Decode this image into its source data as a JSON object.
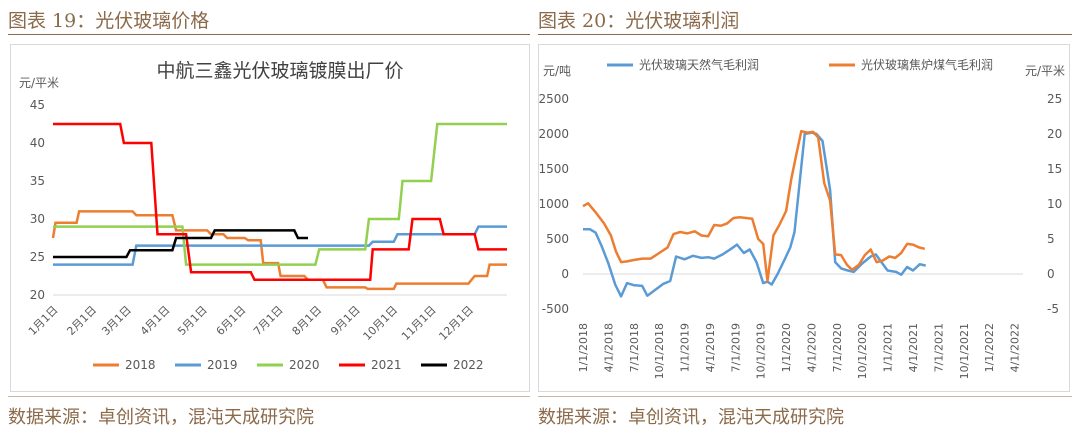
{
  "left_panel": {
    "figure_title": "图表 19：光伏玻璃价格",
    "source": "数据来源：卓创资讯，混沌天成研究院"
  },
  "right_panel": {
    "figure_title": "图表 20：光伏玻璃利润",
    "source": "数据来源：卓创资讯，混沌天成研究院"
  },
  "chart_data": [
    {
      "type": "line",
      "title": "中航三鑫光伏玻璃镀膜出厂价",
      "ylabel": "元/平米",
      "ylim": [
        20,
        45
      ],
      "yticks": [
        20,
        25,
        30,
        35,
        40,
        45
      ],
      "xlim": [
        1,
        366
      ],
      "xticks": [
        {
          "label": "1月1日",
          "day": 1
        },
        {
          "label": "2月1日",
          "day": 32
        },
        {
          "label": "3月1日",
          "day": 60
        },
        {
          "label": "4月1日",
          "day": 91
        },
        {
          "label": "5月1日",
          "day": 121
        },
        {
          "label": "6月1日",
          "day": 152
        },
        {
          "label": "7月1日",
          "day": 182
        },
        {
          "label": "8月1日",
          "day": 213
        },
        {
          "label": "9月1日",
          "day": 244
        },
        {
          "label": "10月1日",
          "day": 274
        },
        {
          "label": "11月1日",
          "day": 305
        },
        {
          "label": "12月1日",
          "day": 335
        }
      ],
      "legend_position": "bottom",
      "series": [
        {
          "name": "2018",
          "color": "#ED7D31",
          "points": [
            [
              1,
              27.5
            ],
            [
              3,
              29.5
            ],
            [
              20,
              29.5
            ],
            [
              22,
              31
            ],
            [
              65,
              31
            ],
            [
              68,
              30.5
            ],
            [
              97,
              30.5
            ],
            [
              100,
              28.5
            ],
            [
              125,
              28.5
            ],
            [
              128,
              28
            ],
            [
              138,
              28
            ],
            [
              141,
              27.5
            ],
            [
              155,
              27.5
            ],
            [
              158,
              27.2
            ],
            [
              168,
              27.2
            ],
            [
              170,
              24.2
            ],
            [
              182,
              24.2
            ],
            [
              184,
              22.5
            ],
            [
              203,
              22.5
            ],
            [
              206,
              22
            ],
            [
              218,
              22
            ],
            [
              221,
              21
            ],
            [
              252,
              21
            ],
            [
              254,
              20.8
            ],
            [
              275,
              20.8
            ],
            [
              277,
              21.5
            ],
            [
              335,
              21.5
            ],
            [
              340,
              22.5
            ],
            [
              350,
              22.5
            ],
            [
              352,
              24
            ],
            [
              366,
              24
            ]
          ]
        },
        {
          "name": "2019",
          "color": "#5B9BD5",
          "points": [
            [
              1,
              24
            ],
            [
              65,
              24
            ],
            [
              68,
              26.5
            ],
            [
              255,
              26.5
            ],
            [
              258,
              27
            ],
            [
              275,
              27
            ],
            [
              278,
              28
            ],
            [
              340,
              28
            ],
            [
              343,
              29
            ],
            [
              366,
              29
            ]
          ]
        },
        {
          "name": "2020",
          "color": "#92D050",
          "points": [
            [
              1,
              29
            ],
            [
              105,
              29
            ],
            [
              108,
              24
            ],
            [
              212,
              24
            ],
            [
              215,
              26
            ],
            [
              252,
              26
            ],
            [
              255,
              30
            ],
            [
              279,
              30
            ],
            [
              282,
              35
            ],
            [
              305,
              35
            ],
            [
              310,
              42.5
            ],
            [
              366,
              42.5
            ]
          ]
        },
        {
          "name": "2021",
          "color": "#FF0000",
          "points": [
            [
              1,
              42.5
            ],
            [
              55,
              42.5
            ],
            [
              58,
              40
            ],
            [
              80,
              40
            ],
            [
              85,
              28
            ],
            [
              108,
              28
            ],
            [
              112,
              23
            ],
            [
              160,
              23
            ],
            [
              163,
              22
            ],
            [
              256,
              22
            ],
            [
              258,
              26
            ],
            [
              287,
              26
            ],
            [
              290,
              30
            ],
            [
              312,
              30
            ],
            [
              315,
              28
            ],
            [
              340,
              28
            ],
            [
              343,
              26
            ],
            [
              366,
              26
            ]
          ]
        },
        {
          "name": "2022",
          "color": "#000000",
          "points": [
            [
              1,
              25
            ],
            [
              60,
              25
            ],
            [
              63,
              25.9
            ],
            [
              97,
              25.9
            ],
            [
              100,
              27.5
            ],
            [
              128,
              27.5
            ],
            [
              131,
              28.5
            ],
            [
              195,
              28.5
            ],
            [
              198,
              27.5
            ],
            [
              206,
              27.5
            ]
          ]
        }
      ]
    },
    {
      "type": "line",
      "ylabel": "元/吨",
      "y2label": "元/平米",
      "ylim": [
        -500,
        2500
      ],
      "yticks": [
        -500,
        0,
        500,
        1000,
        1500,
        2000,
        2500
      ],
      "y2lim": [
        -5,
        25
      ],
      "y2ticks": [
        -5,
        0,
        5,
        10,
        15,
        20,
        25
      ],
      "xlim": [
        0,
        52
      ],
      "xticks": [
        {
          "label": "1/1/2018",
          "month": 0
        },
        {
          "label": "4/1/2018",
          "month": 3
        },
        {
          "label": "7/1/2018",
          "month": 6
        },
        {
          "label": "10/1/2018",
          "month": 9
        },
        {
          "label": "1/1/2019",
          "month": 12
        },
        {
          "label": "4/1/2019",
          "month": 15
        },
        {
          "label": "7/1/2019",
          "month": 18
        },
        {
          "label": "10/1/2019",
          "month": 21
        },
        {
          "label": "1/1/2020",
          "month": 24
        },
        {
          "label": "4/1/2020",
          "month": 27
        },
        {
          "label": "7/1/2020",
          "month": 30
        },
        {
          "label": "10/1/2020",
          "month": 33
        },
        {
          "label": "1/1/2021",
          "month": 36
        },
        {
          "label": "4/1/2021",
          "month": 39
        },
        {
          "label": "7/1/2021",
          "month": 42
        },
        {
          "label": "10/1/2021",
          "month": 45
        },
        {
          "label": "1/1/2022",
          "month": 48
        },
        {
          "label": "4/1/2022",
          "month": 51
        }
      ],
      "legend_position": "top",
      "series": [
        {
          "name": "光伏玻璃天然气毛利润",
          "color": "#5B9BD5",
          "axis": "left",
          "points": [
            [
              0,
              640
            ],
            [
              0.8,
              640
            ],
            [
              1.5,
              590
            ],
            [
              2.2,
              400
            ],
            [
              3,
              150
            ],
            [
              3.8,
              -150
            ],
            [
              4.5,
              -320
            ],
            [
              5.2,
              -130
            ],
            [
              6,
              -160
            ],
            [
              7,
              -170
            ],
            [
              7.6,
              -310
            ],
            [
              8.5,
              -230
            ],
            [
              9.5,
              -140
            ],
            [
              10.3,
              -100
            ],
            [
              11,
              250
            ],
            [
              12,
              210
            ],
            [
              13,
              260
            ],
            [
              14,
              230
            ],
            [
              14.8,
              240
            ],
            [
              15.5,
              220
            ],
            [
              16.5,
              280
            ],
            [
              17.5,
              360
            ],
            [
              18.2,
              420
            ],
            [
              19,
              300
            ],
            [
              19.7,
              350
            ],
            [
              20.5,
              170
            ],
            [
              21.3,
              -130
            ],
            [
              21.8,
              -110
            ],
            [
              22.3,
              -150
            ],
            [
              23,
              0
            ],
            [
              23.8,
              200
            ],
            [
              24.5,
              380
            ],
            [
              25,
              600
            ],
            [
              25.6,
              1300
            ],
            [
              26.2,
              2000
            ],
            [
              27,
              2020
            ],
            [
              27.6,
              2000
            ],
            [
              28.3,
              1900
            ],
            [
              29.2,
              1200
            ],
            [
              29.8,
              170
            ],
            [
              30.5,
              80
            ],
            [
              31.3,
              50
            ],
            [
              32,
              30
            ],
            [
              33,
              150
            ],
            [
              34,
              250
            ],
            [
              34.6,
              280
            ],
            [
              35.2,
              180
            ],
            [
              36,
              50
            ],
            [
              37,
              30
            ],
            [
              37.6,
              -10
            ],
            [
              38.3,
              100
            ],
            [
              39,
              50
            ],
            [
              39.8,
              140
            ],
            [
              40.5,
              120
            ]
          ]
        },
        {
          "name": "光伏玻璃焦炉煤气毛利润",
          "color": "#ED7D31",
          "axis": "left",
          "points": [
            [
              0,
              970
            ],
            [
              0.6,
              1010
            ],
            [
              1.5,
              880
            ],
            [
              2.5,
              720
            ],
            [
              3.3,
              550
            ],
            [
              3.9,
              320
            ],
            [
              4.5,
              170
            ],
            [
              5.2,
              180
            ],
            [
              6,
              200
            ],
            [
              7,
              220
            ],
            [
              8,
              220
            ],
            [
              9,
              300
            ],
            [
              10,
              380
            ],
            [
              10.7,
              570
            ],
            [
              11.5,
              600
            ],
            [
              12.3,
              580
            ],
            [
              13.2,
              610
            ],
            [
              14,
              550
            ],
            [
              14.8,
              540
            ],
            [
              15.5,
              700
            ],
            [
              16.3,
              690
            ],
            [
              17,
              720
            ],
            [
              17.8,
              800
            ],
            [
              18.5,
              810
            ],
            [
              19.3,
              800
            ],
            [
              20,
              790
            ],
            [
              20.7,
              500
            ],
            [
              21.3,
              430
            ],
            [
              21.8,
              -100
            ],
            [
              22.5,
              550
            ],
            [
              23.2,
              700
            ],
            [
              24,
              900
            ],
            [
              24.6,
              1350
            ],
            [
              25.2,
              1700
            ],
            [
              25.8,
              2040
            ],
            [
              26.5,
              2020
            ],
            [
              27.2,
              2030
            ],
            [
              27.8,
              1950
            ],
            [
              28.5,
              1300
            ],
            [
              29.2,
              1050
            ],
            [
              29.8,
              280
            ],
            [
              30.5,
              270
            ],
            [
              31.2,
              130
            ],
            [
              31.8,
              60
            ],
            [
              32.6,
              130
            ],
            [
              33.3,
              270
            ],
            [
              34,
              350
            ],
            [
              34.7,
              170
            ],
            [
              35.4,
              190
            ],
            [
              36.2,
              250
            ],
            [
              36.9,
              230
            ],
            [
              37.6,
              300
            ],
            [
              38.3,
              430
            ],
            [
              39,
              420
            ],
            [
              39.7,
              380
            ],
            [
              40.4,
              360
            ]
          ]
        }
      ]
    }
  ]
}
